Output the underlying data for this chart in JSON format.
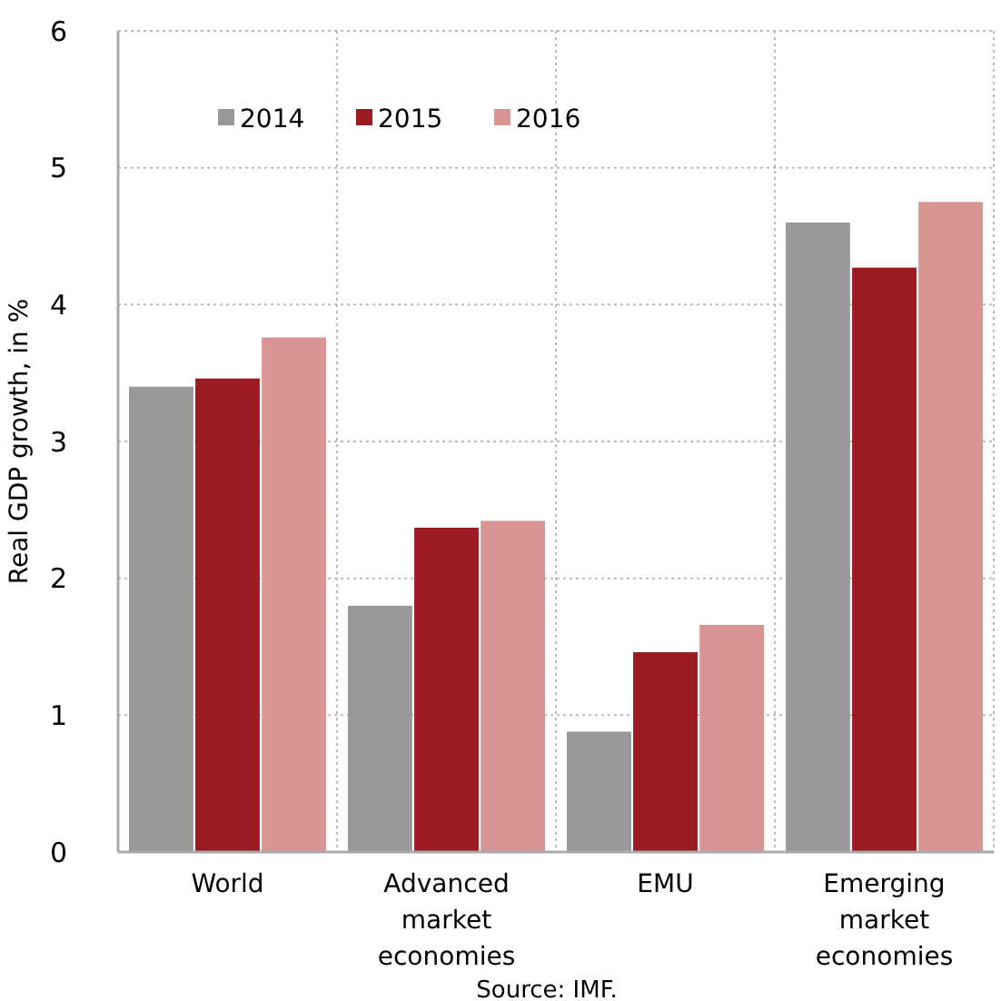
{
  "chart_data": {
    "type": "bar",
    "ylabel": "Real GDP growth, in %",
    "categories": [
      "World",
      "Advanced market economies",
      "EMU",
      "Emerging market economies"
    ],
    "series": [
      {
        "name": "2014",
        "color": "#999999",
        "values": [
          3.4,
          1.8,
          0.88,
          4.6
        ]
      },
      {
        "name": "2015",
        "color": "#9c1b22",
        "values": [
          3.46,
          2.37,
          1.46,
          4.27
        ]
      },
      {
        "name": "2016",
        "color": "#d99594",
        "values": [
          3.76,
          2.42,
          1.66,
          4.75
        ]
      }
    ],
    "ylim": [
      0,
      6
    ],
    "yticks": [
      0,
      1,
      2,
      3,
      4,
      5,
      6
    ],
    "grid": true,
    "legend": "top left",
    "annotations": [
      "Source: IMF."
    ]
  }
}
